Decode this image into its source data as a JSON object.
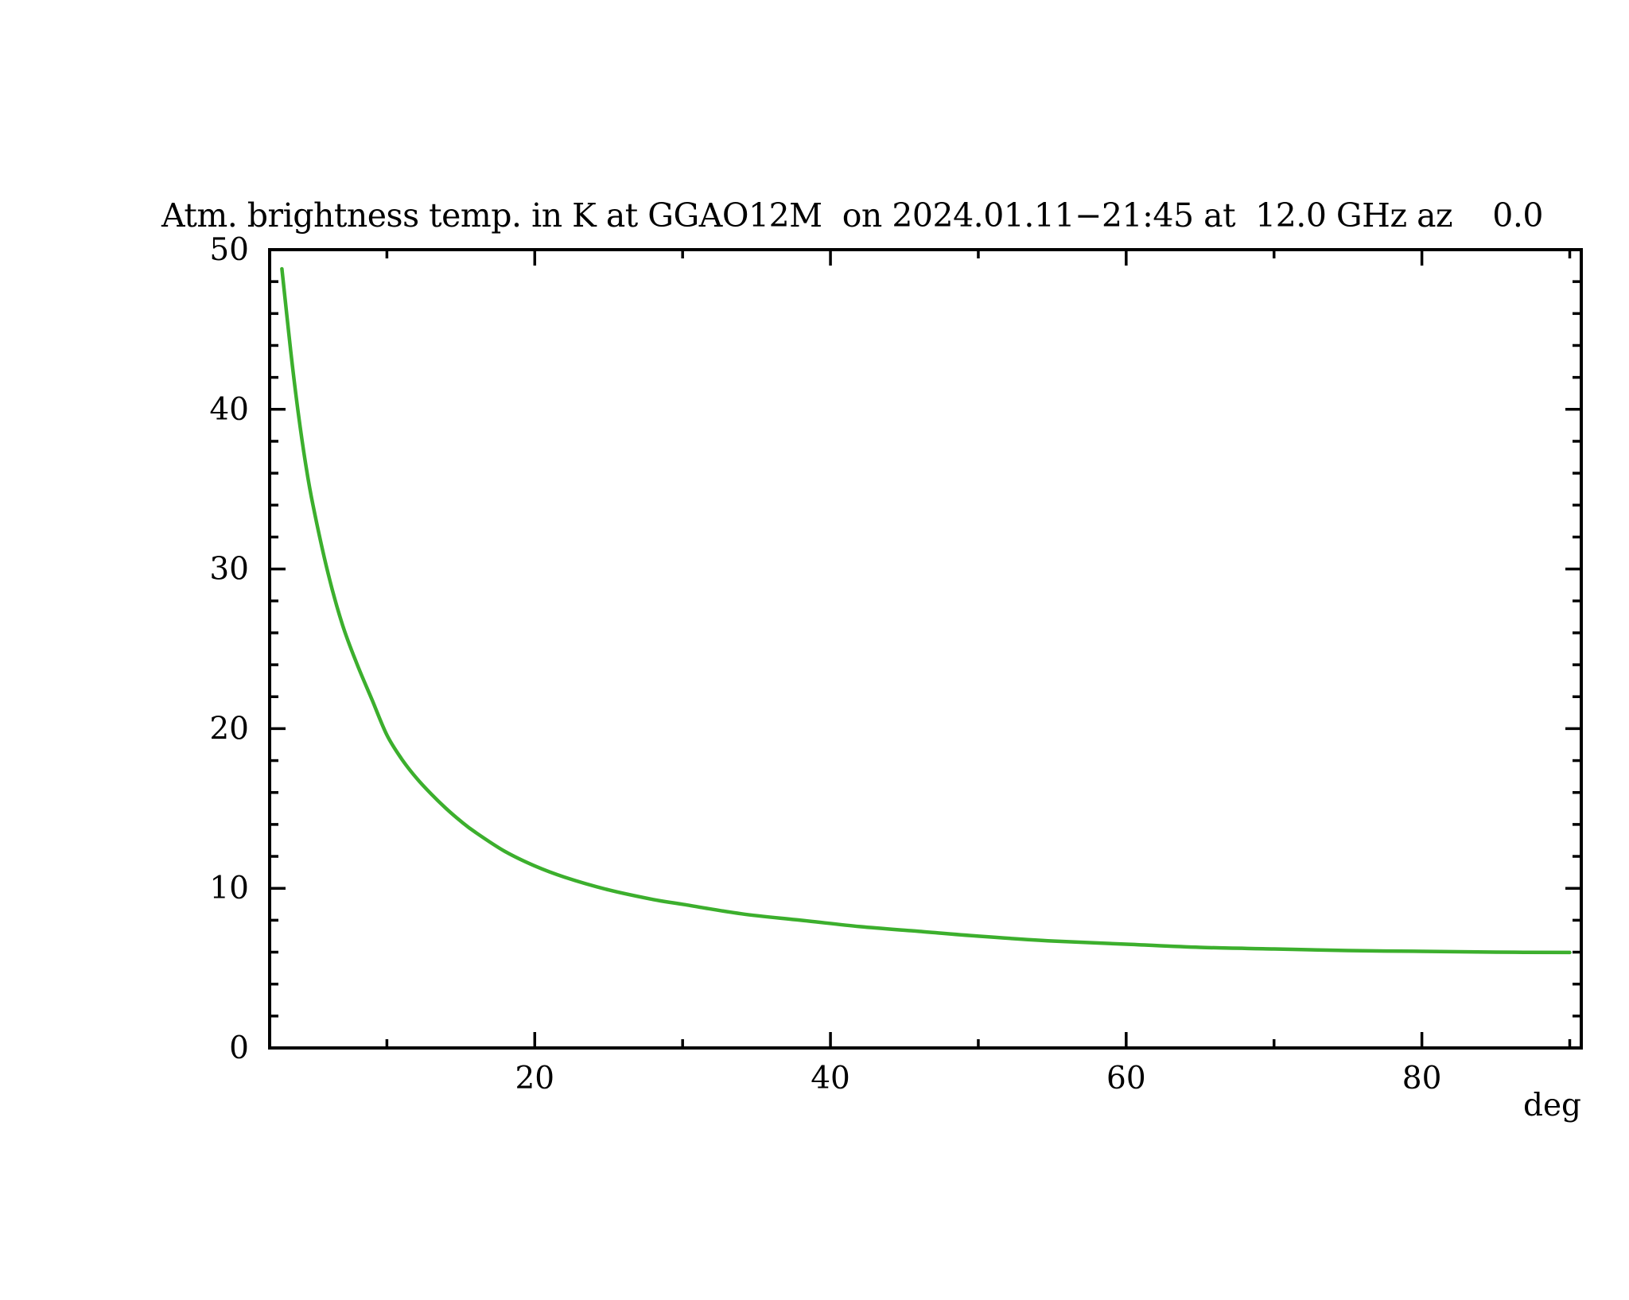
{
  "chart_data": {
    "type": "line",
    "title": "Atm. brightness temp. in K at GGAO12M  on 2024.01.11−21:45 at  12.0 GHz az    0.0",
    "xlabel": "deg",
    "ylabel": "",
    "xlim": [
      2.07,
      90.78
    ],
    "ylim": [
      0,
      50
    ],
    "x_major_ticks": [
      20,
      40,
      60,
      80
    ],
    "x_minor_ticks": [
      10,
      30,
      50,
      70,
      90
    ],
    "y_major_ticks": [
      0,
      10,
      20,
      30,
      40,
      50
    ],
    "y_minor_ticks": [
      2,
      4,
      6,
      8,
      12,
      14,
      16,
      18,
      22,
      24,
      26,
      28,
      32,
      34,
      36,
      38,
      42,
      44,
      46,
      48
    ],
    "grid": false,
    "legend": "none",
    "series": [
      {
        "name": "atmospheric-brightness-temperature",
        "color": "#3caf2d",
        "x": [
          2.9,
          3.5,
          4,
          4.5,
          5,
          6,
          7,
          8,
          9,
          10,
          11,
          12,
          13,
          14,
          15,
          16,
          18,
          20,
          22,
          25,
          28,
          30,
          34,
          38,
          42,
          46,
          50,
          55,
          60,
          65,
          70,
          75,
          80,
          85,
          90
        ],
        "y": [
          48.8,
          43.6,
          39.8,
          36.6,
          34.0,
          29.8,
          26.5,
          24.0,
          21.8,
          19.6,
          18.1,
          16.9,
          15.9,
          15.0,
          14.2,
          13.5,
          12.3,
          11.4,
          10.7,
          9.9,
          9.3,
          9.0,
          8.4,
          8.0,
          7.6,
          7.3,
          7.0,
          6.7,
          6.5,
          6.3,
          6.2,
          6.1,
          6.05,
          6.0,
          5.98
        ]
      }
    ]
  },
  "colors": {
    "curve": "#3caf2d",
    "axis": "#000000",
    "text": "#000000",
    "background": "#ffffff"
  }
}
